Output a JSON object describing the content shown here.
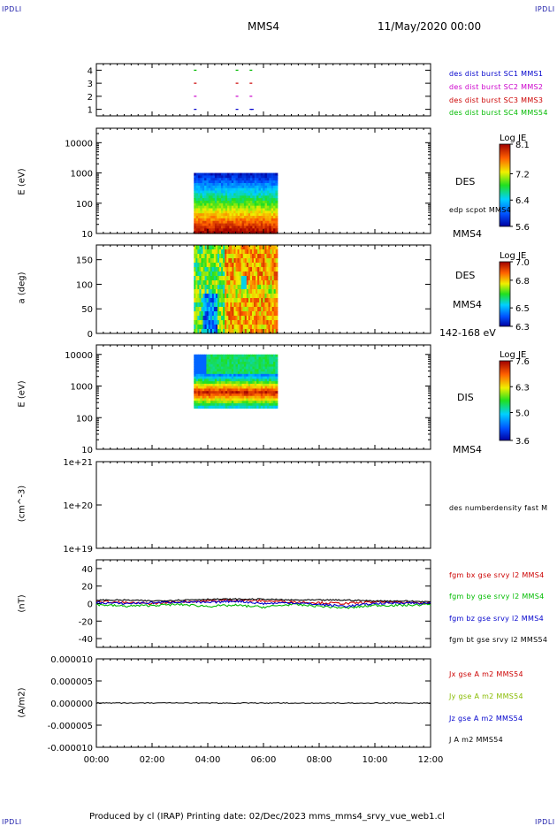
{
  "header": {
    "corner_left": "IPDLI",
    "corner_right": "IPDLI",
    "spacecraft": "MMS4",
    "datetime": "11/May/2020 00:00"
  },
  "footer": {
    "text": "Produced by cl (IRAP)   Printing date: 02/Dec/2023   mms_mms4_srvy_vue_web1.cl",
    "corner_left": "IPDLI",
    "corner_right": "IPDLI"
  },
  "colors": {
    "mms1": "#0000cc",
    "mms2": "#cc00cc",
    "mms3": "#cc0000",
    "mms4": "#00bb00",
    "bt": "#000000"
  },
  "chart_data": [
    {
      "id": "burst_availability",
      "type": "scatter",
      "x_unit": "hours",
      "xlim": [
        0,
        12
      ],
      "ylim": [
        0.5,
        4.5
      ],
      "y_ticks": [
        "1",
        "2",
        "3",
        "4"
      ],
      "series": [
        {
          "name": "des dist burst SC1 MMS1",
          "color": "#0000cc",
          "y": 1,
          "x": [
            3.55,
            5.05,
            5.55,
            5.6
          ]
        },
        {
          "name": "des dist burst SC2 MMS2",
          "color": "#cc00cc",
          "y": 2,
          "x": [
            3.55,
            5.05,
            5.55
          ]
        },
        {
          "name": "des dist burst SC3 MMS3",
          "color": "#cc0000",
          "y": 3,
          "x": [
            3.55,
            5.05,
            5.55
          ]
        },
        {
          "name": "des dist burst SC4 MMS54",
          "color": "#00bb00",
          "y": 4,
          "x": [
            3.55,
            5.05,
            5.55
          ]
        }
      ]
    },
    {
      "id": "des_energy",
      "type": "heatmap",
      "ylabel": "E (eV)",
      "y_scale": "log",
      "ylim": [
        10,
        30000
      ],
      "y_ticks": [
        "10",
        "100",
        "1000",
        "10000"
      ],
      "data_x_range": [
        3.5,
        6.5
      ],
      "data_y_range": [
        10,
        1000
      ],
      "side_labels": [
        "DES",
        "edp scpot MMS4",
        "MMS4"
      ],
      "colorbar": {
        "title": "Log JE",
        "ticks": [
          "8.1",
          "7.2",
          "6.4",
          "5.6"
        ],
        "min": 5.6,
        "max": 8.1
      }
    },
    {
      "id": "des_pitch",
      "type": "heatmap",
      "ylabel": "a (deg)",
      "ylim": [
        0,
        180
      ],
      "y_ticks": [
        "0",
        "50",
        "100",
        "150"
      ],
      "data_x_range": [
        3.5,
        6.5
      ],
      "side_labels": [
        "DES",
        "MMS4",
        "142-168 eV"
      ],
      "colorbar": {
        "title": "Log JE",
        "ticks": [
          "7.0",
          "6.8",
          "6.5",
          "6.3"
        ],
        "min": 6.3,
        "max": 7.0
      }
    },
    {
      "id": "dis_energy",
      "type": "heatmap",
      "ylabel": "E (eV)",
      "y_scale": "log",
      "ylim": [
        10,
        20000
      ],
      "y_ticks": [
        "10",
        "100",
        "1000",
        "10000"
      ],
      "data_x_range": [
        3.5,
        6.5
      ],
      "data_y_range": [
        200,
        10000
      ],
      "side_labels": [
        "DIS",
        "MMS4"
      ],
      "colorbar": {
        "title": "Log JE",
        "ticks": [
          "7.6",
          "6.3",
          "5.0",
          "3.6"
        ],
        "min": 3.6,
        "max": 7.6
      }
    },
    {
      "id": "density",
      "type": "line",
      "ylabel": "(cm^-3)",
      "y_scale": "log",
      "ylim": [
        1e+19,
        1e+21
      ],
      "y_ticks": [
        "1e+19",
        "1e+20",
        "1e+21"
      ],
      "side_labels": [
        "des numberdensity fast M"
      ]
    },
    {
      "id": "fgm",
      "type": "line",
      "ylabel": "(nT)",
      "ylim": [
        -50,
        50
      ],
      "y_ticks": [
        "-40",
        "-20",
        "0",
        "20",
        "40"
      ],
      "series": [
        {
          "name": "fgm bx gse srvy l2 MMS4",
          "color": "#cc0000",
          "x": [
            0,
            1,
            2,
            3,
            4,
            5,
            6,
            7,
            8,
            9,
            10,
            11,
            12
          ],
          "y": [
            3,
            1,
            0,
            2,
            3,
            4,
            3,
            2,
            1,
            0,
            2,
            1,
            1
          ]
        },
        {
          "name": "fgm by gse srvy l2 MMS4",
          "color": "#00bb00",
          "x": [
            0,
            1,
            2,
            3,
            4,
            5,
            6,
            7,
            8,
            9,
            10,
            11,
            12
          ],
          "y": [
            -1,
            -3,
            -2,
            -1,
            -3,
            -2,
            -4,
            -1,
            -3,
            -5,
            -2,
            -2,
            -1
          ]
        },
        {
          "name": "fgm bz gse srvy l2 MMS4",
          "color": "#0000cc",
          "x": [
            0,
            1,
            2,
            3,
            4,
            5,
            6,
            7,
            8,
            9,
            10,
            11,
            12
          ],
          "y": [
            1,
            0,
            1,
            2,
            1,
            3,
            0,
            1,
            -1,
            -3,
            0,
            1,
            0
          ]
        },
        {
          "name": "fgm bt gse srvy l2 MMS54",
          "color": "#000000",
          "x": [
            0,
            1,
            2,
            3,
            4,
            5,
            6,
            7,
            8,
            9,
            10,
            11,
            12
          ],
          "y": [
            4,
            4,
            3,
            4,
            5,
            5,
            5,
            4,
            4,
            4,
            3,
            3,
            2
          ]
        }
      ]
    },
    {
      "id": "current",
      "type": "line",
      "ylabel": "(A/m2)",
      "ylim": [
        -1e-05,
        1e-05
      ],
      "y_ticks": [
        "-0.000010",
        "-0.000005",
        "0.000000",
        "0.000005",
        "0.000010"
      ],
      "xlabel_ticks": [
        "00:00",
        "02:00",
        "04:00",
        "06:00",
        "08:00",
        "10:00",
        "12:00"
      ],
      "xlim": [
        0,
        12
      ],
      "series": [
        {
          "name": "Jx gse A m2 MMS54",
          "color": "#cc0000"
        },
        {
          "name": "Jy gse A m2 MMS54",
          "color": "#88bb00"
        },
        {
          "name": "Jz gse A m2 MMS54",
          "color": "#0000cc"
        },
        {
          "name": "J A m2 MMS54",
          "color": "#000000"
        }
      ]
    }
  ]
}
